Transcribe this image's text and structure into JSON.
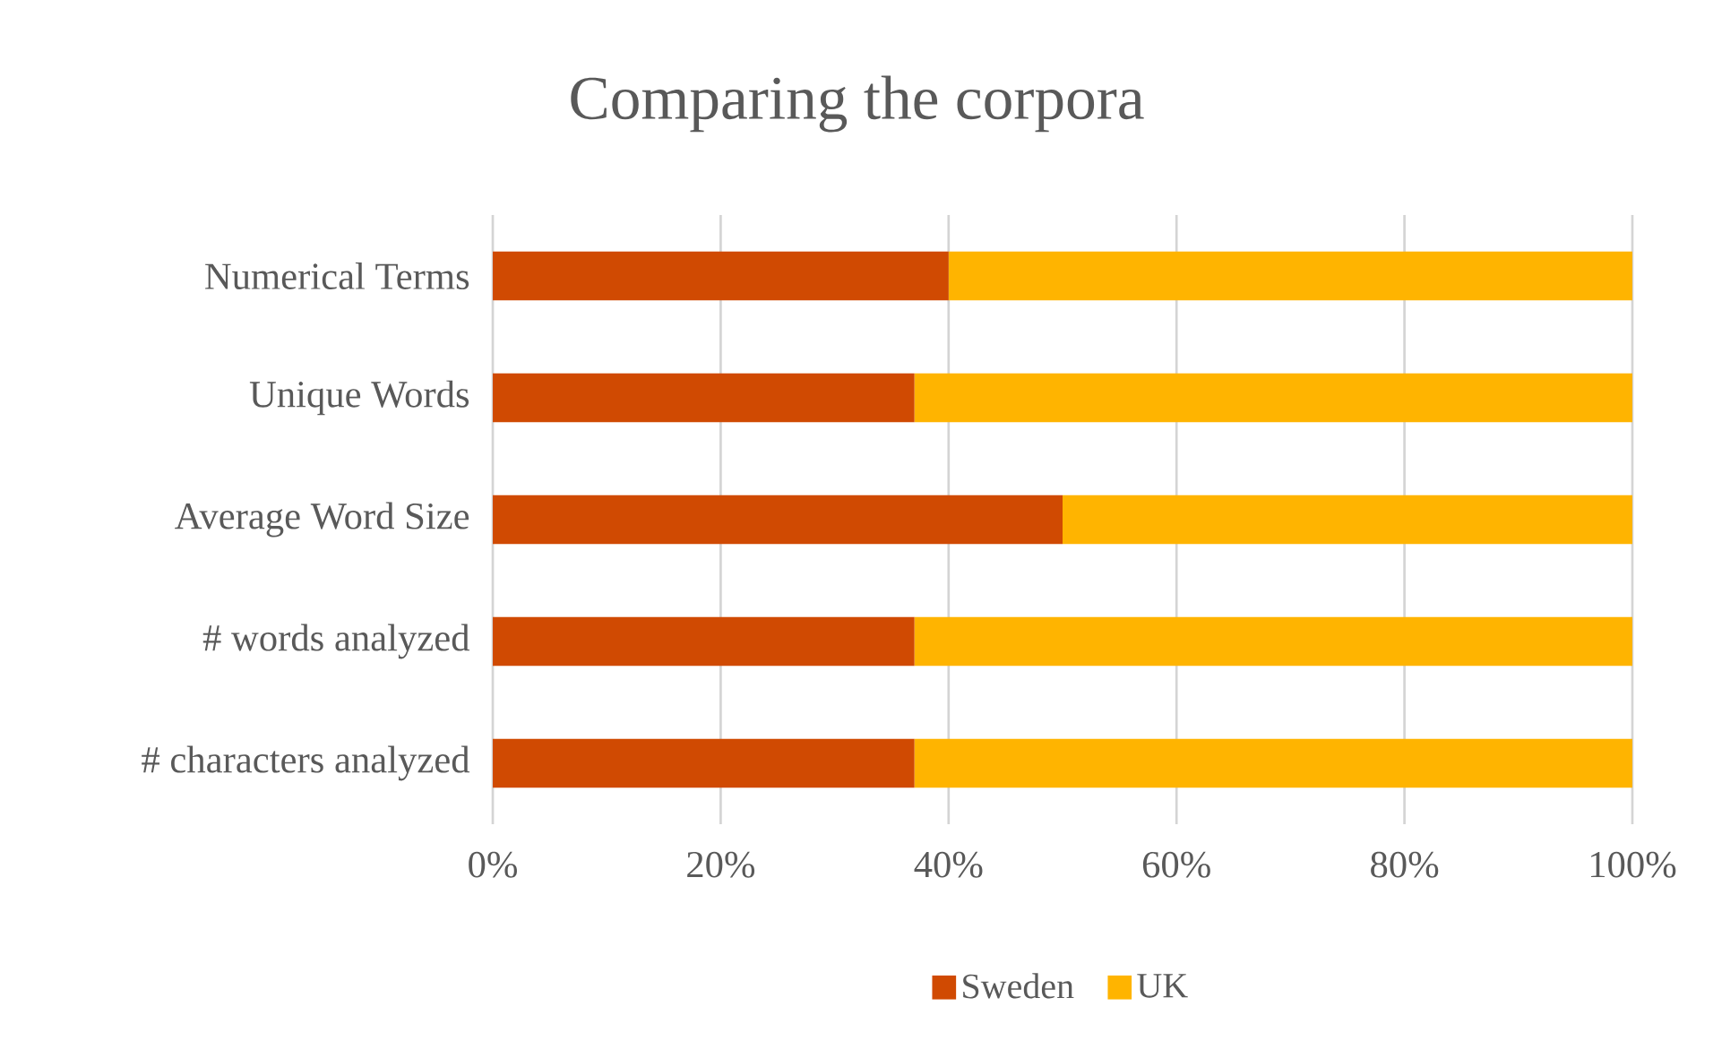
{
  "chart_data": {
    "type": "bar",
    "orientation": "horizontal",
    "stacked": true,
    "title": "Comparing the corpora",
    "categories": [
      "Numerical Terms",
      "Unique Words",
      "Average Word Size",
      "# words analyzed",
      "# characters analyzed"
    ],
    "series": [
      {
        "name": "Sweden",
        "color": "#d04a02",
        "values": [
          40,
          37,
          50,
          37,
          37
        ]
      },
      {
        "name": "UK",
        "color": "#ffb400",
        "values": [
          60,
          63,
          50,
          63,
          63
        ]
      }
    ],
    "xlim": [
      0,
      100
    ],
    "xticks": [
      {
        "value": 0,
        "label": "0%"
      },
      {
        "value": 20,
        "label": "20%"
      },
      {
        "value": 40,
        "label": "40%"
      },
      {
        "value": 60,
        "label": "60%"
      },
      {
        "value": 80,
        "label": "80%"
      },
      {
        "value": 100,
        "label": "100%"
      }
    ],
    "grid": "x",
    "legend": "bottom"
  }
}
